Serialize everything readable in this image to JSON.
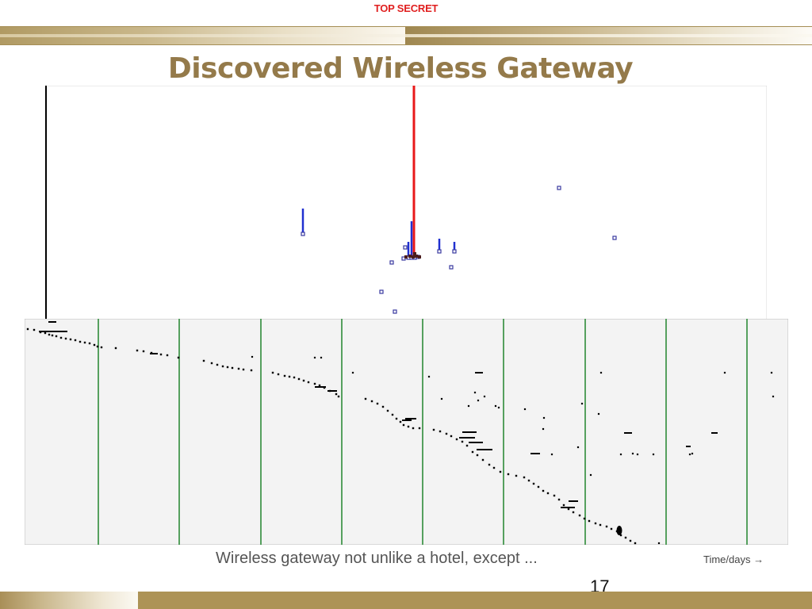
{
  "slide": {
    "classification": "TOP SECRET",
    "title": "Discovered Wireless Gateway",
    "caption": "Wireless gateway not unlike a hotel, except ...",
    "axis_label": "Time/days →",
    "page_number": "17"
  },
  "colors": {
    "title": "#947a4a",
    "classification": "#e01f1f",
    "gold_bar": "#ad9356",
    "grid_line": "#2e8b3a",
    "highlight_spike": "#e8191a",
    "stem": "#2030d0",
    "marker": "#3a3aa0",
    "point": "#000000"
  },
  "chart_data": [
    {
      "type": "scatter",
      "title": "",
      "xlabel": "",
      "ylabel": "",
      "grid": false,
      "xlim": [
        0,
        910
      ],
      "ylim": [
        0,
        295
      ],
      "highlight_spike": {
        "x": 465,
        "y": 295
      },
      "stems": [
        {
          "x": 325,
          "y_low": 108,
          "y_high": 140
        },
        {
          "x": 458,
          "y_low": 78,
          "y_high": 98
        },
        {
          "x": 462,
          "y_low": 78,
          "y_high": 124
        },
        {
          "x": 497,
          "y_low": 86,
          "y_high": 102
        },
        {
          "x": 516,
          "y_low": 86,
          "y_high": 98
        }
      ],
      "markers": [
        {
          "x": 325,
          "y": 108
        },
        {
          "x": 648,
          "y": 166
        },
        {
          "x": 718,
          "y": 103
        },
        {
          "x": 437,
          "y": 72
        },
        {
          "x": 452,
          "y": 77
        },
        {
          "x": 454,
          "y": 91
        },
        {
          "x": 458,
          "y": 78
        },
        {
          "x": 462,
          "y": 78
        },
        {
          "x": 466,
          "y": 78
        },
        {
          "x": 470,
          "y": 79
        },
        {
          "x": 497,
          "y": 86
        },
        {
          "x": 516,
          "y": 86
        },
        {
          "x": 512,
          "y": 66
        },
        {
          "x": 424,
          "y": 35
        },
        {
          "x": 441,
          "y": 10
        }
      ]
    },
    {
      "type": "scatter",
      "title": "",
      "xlabel": "Time/days →",
      "ylabel": "",
      "grid": true,
      "xlim": [
        0,
        963
      ],
      "ylim": [
        0,
        285
      ],
      "gridlines_x": [
        93,
        195,
        298,
        400,
        502,
        604,
        707,
        809,
        911
      ],
      "trail": [
        [
          4,
          13
        ],
        [
          12,
          14
        ],
        [
          20,
          17
        ],
        [
          26,
          18
        ],
        [
          31,
          20
        ],
        [
          35,
          21
        ],
        [
          40,
          22
        ],
        [
          46,
          24
        ],
        [
          52,
          25
        ],
        [
          58,
          26
        ],
        [
          64,
          27
        ],
        [
          70,
          29
        ],
        [
          76,
          30
        ],
        [
          82,
          31
        ],
        [
          88,
          33
        ],
        [
          92,
          35
        ],
        [
          97,
          36
        ],
        [
          115,
          37
        ],
        [
          142,
          40
        ],
        [
          150,
          41
        ],
        [
          160,
          43
        ],
        [
          172,
          45
        ],
        [
          180,
          46
        ],
        [
          194,
          49
        ],
        [
          226,
          53
        ],
        [
          236,
          56
        ],
        [
          243,
          58
        ],
        [
          250,
          60
        ],
        [
          256,
          61
        ],
        [
          262,
          62
        ],
        [
          270,
          63
        ],
        [
          276,
          64
        ],
        [
          286,
          65
        ],
        [
          313,
          68
        ],
        [
          320,
          70
        ],
        [
          328,
          72
        ],
        [
          334,
          73
        ],
        [
          340,
          74
        ],
        [
          346,
          76
        ],
        [
          352,
          78
        ],
        [
          358,
          80
        ],
        [
          366,
          82
        ],
        [
          372,
          84
        ],
        [
          378,
          87
        ],
        [
          385,
          91
        ],
        [
          393,
          95
        ],
        [
          396,
          98
        ],
        [
          430,
          101
        ],
        [
          438,
          104
        ],
        [
          445,
          107
        ],
        [
          452,
          111
        ],
        [
          458,
          116
        ],
        [
          464,
          121
        ],
        [
          469,
          126
        ],
        [
          474,
          130
        ],
        [
          478,
          134
        ],
        [
          484,
          136
        ],
        [
          490,
          138
        ],
        [
          498,
          138
        ],
        [
          516,
          140
        ],
        [
          524,
          142
        ],
        [
          532,
          145
        ],
        [
          538,
          148
        ],
        [
          545,
          152
        ],
        [
          552,
          155
        ],
        [
          558,
          160
        ],
        [
          565,
          168
        ],
        [
          571,
          172
        ],
        [
          578,
          178
        ],
        [
          586,
          184
        ],
        [
          592,
          188
        ],
        [
          600,
          193
        ],
        [
          610,
          196
        ],
        [
          620,
          198
        ],
        [
          630,
          200
        ],
        [
          636,
          204
        ],
        [
          642,
          208
        ],
        [
          648,
          212
        ],
        [
          654,
          217
        ],
        [
          660,
          220
        ],
        [
          668,
          223
        ],
        [
          674,
          228
        ],
        [
          680,
          235
        ],
        [
          686,
          240
        ],
        [
          692,
          244
        ],
        [
          700,
          248
        ],
        [
          706,
          252
        ],
        [
          712,
          255
        ],
        [
          720,
          258
        ],
        [
          726,
          260
        ],
        [
          734,
          262
        ],
        [
          740,
          265
        ],
        [
          747,
          268
        ],
        [
          752,
          273
        ],
        [
          758,
          276
        ],
        [
          764,
          280
        ],
        [
          770,
          283
        ]
      ],
      "dashes": [
        [
          18,
          16,
          36
        ],
        [
          30,
          4,
          10
        ],
        [
          158,
          44,
          10
        ],
        [
          476,
          128,
          12
        ],
        [
          480,
          126,
          14
        ],
        [
          552,
          143,
          18
        ],
        [
          548,
          150,
          20
        ],
        [
          560,
          156,
          18
        ],
        [
          570,
          165,
          20
        ],
        [
          638,
          170,
          12
        ],
        [
          756,
          144,
          10
        ],
        [
          676,
          238,
          18
        ],
        [
          686,
          230,
          12
        ],
        [
          568,
          68,
          10
        ],
        [
          366,
          86,
          14
        ],
        [
          382,
          91,
          12
        ],
        [
          866,
          144,
          8
        ],
        [
          834,
          161,
          6
        ]
      ],
      "sparse": [
        [
          287,
          48
        ],
        [
          366,
          49
        ],
        [
          374,
          49
        ],
        [
          414,
          68
        ],
        [
          510,
          73
        ],
        [
          526,
          101
        ],
        [
          594,
          110
        ],
        [
          654,
          139
        ],
        [
          703,
          107
        ],
        [
          724,
          120
        ],
        [
          727,
          68
        ],
        [
          883,
          68
        ],
        [
          942,
          68
        ],
        [
          944,
          98
        ],
        [
          655,
          125
        ],
        [
          752,
          171
        ],
        [
          767,
          170
        ],
        [
          773,
          171
        ],
        [
          793,
          171
        ],
        [
          839,
          171
        ],
        [
          842,
          170
        ],
        [
          665,
          171
        ],
        [
          698,
          162
        ],
        [
          560,
          110
        ],
        [
          572,
          103
        ],
        [
          568,
          93
        ],
        [
          580,
          98
        ],
        [
          598,
          112
        ],
        [
          631,
          114
        ],
        [
          714,
          197
        ],
        [
          800,
          283
        ],
        [
          805,
          286
        ]
      ],
      "blob": {
        "x": 750,
        "y": 267
      }
    }
  ]
}
